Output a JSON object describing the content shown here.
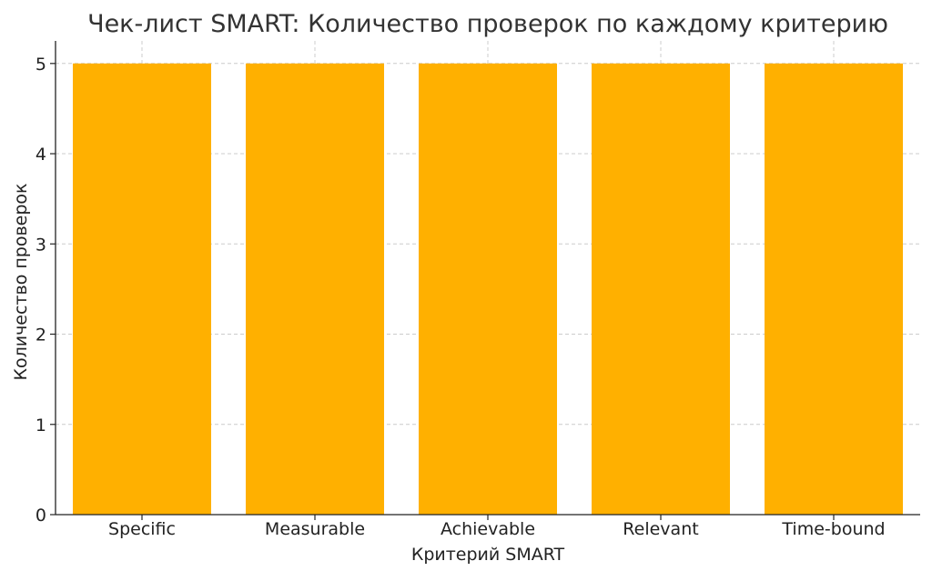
{
  "chart_data": {
    "type": "bar",
    "title": "Чек-лист SMART: Количество проверок по каждому критерию",
    "xlabel": "Критерий SMART",
    "ylabel": "Количество проверок",
    "categories": [
      "Specific",
      "Measurable",
      "Achievable",
      "Relevant",
      "Time-bound"
    ],
    "values": [
      5,
      5,
      5,
      5,
      5
    ],
    "ylim": [
      0,
      5.25
    ],
    "yticks": [
      0,
      1,
      2,
      3,
      4,
      5
    ],
    "grid": true,
    "bar_color": "#FFB000",
    "grid_color": "#cccccc",
    "axis_color": "#222222",
    "text_color": "#222222",
    "title_color": "#333333"
  }
}
